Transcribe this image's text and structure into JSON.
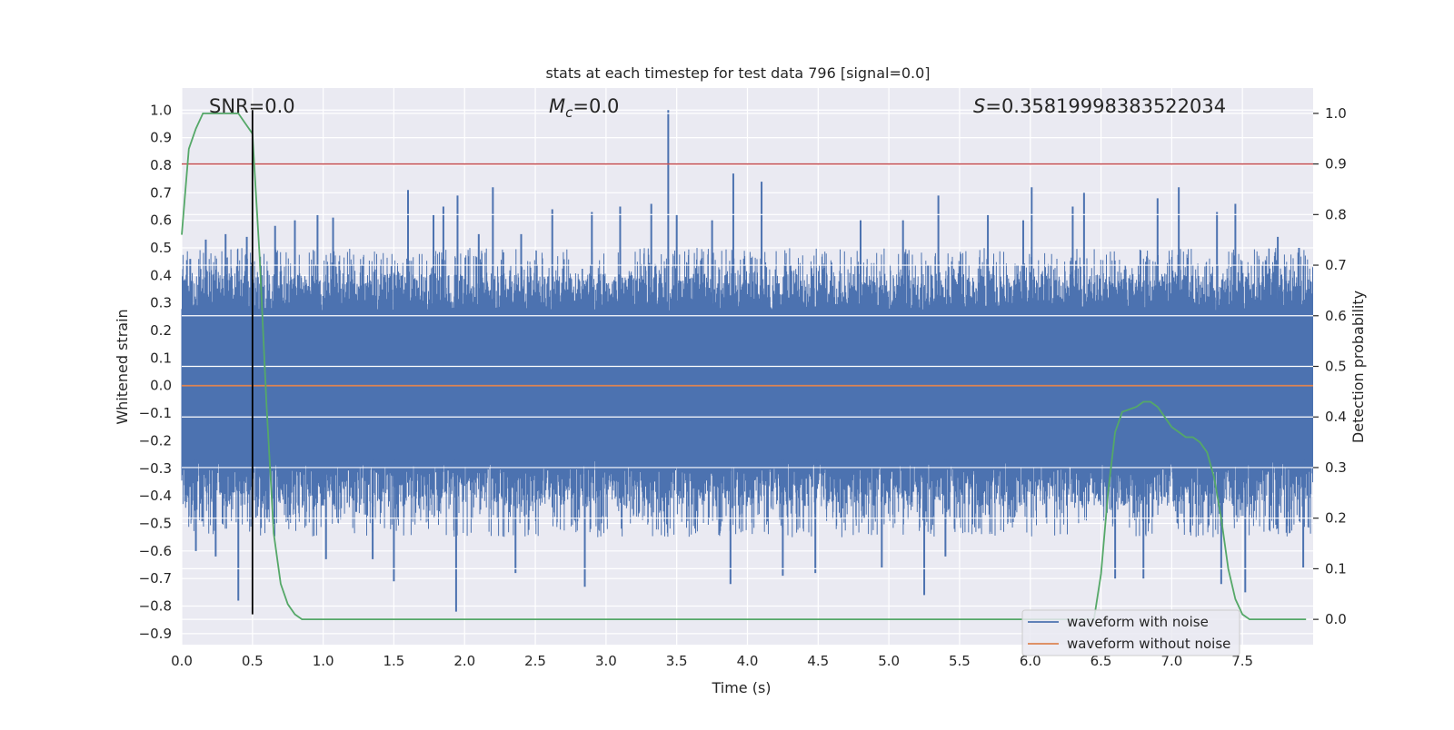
{
  "chart_data": {
    "type": "line",
    "title": "stats at each timestep for test data 796 [signal=0.0]",
    "xlabel": "Time (s)",
    "ylabel": "Whitened strain",
    "ylabel_right": "Detection probability",
    "xlim": [
      0.0,
      8.0
    ],
    "ylim": [
      -0.94,
      1.08
    ],
    "ylim_right": [
      -0.05,
      1.05
    ],
    "x_ticks": [
      0.0,
      0.5,
      1.0,
      1.5,
      2.0,
      2.5,
      3.0,
      3.5,
      4.0,
      4.5,
      5.0,
      5.5,
      6.0,
      6.5,
      7.0,
      7.5
    ],
    "x_tick_labels": [
      "0.0",
      "0.5",
      "1.0",
      "1.5",
      "2.0",
      "2.5",
      "3.0",
      "3.5",
      "4.0",
      "4.5",
      "5.0",
      "5.5",
      "6.0",
      "6.5",
      "7.0",
      "7.5"
    ],
    "y_ticks": [
      1.0,
      0.9,
      0.8,
      0.7,
      0.6,
      0.5,
      0.4,
      0.3,
      0.2,
      0.1,
      0.0,
      -0.1,
      -0.2,
      -0.3,
      -0.4,
      -0.5,
      -0.6,
      -0.7,
      -0.8,
      -0.9
    ],
    "y_tick_labels": [
      "1.0",
      "0.9",
      "0.8",
      "0.7",
      "0.6",
      "0.5",
      "0.4",
      "0.3",
      "0.2",
      "0.1",
      "0.0",
      "−0.1",
      "−0.2",
      "−0.3",
      "−0.4",
      "−0.5",
      "−0.6",
      "−0.7",
      "−0.8",
      "−0.9"
    ],
    "y_right_ticks": [
      1.0,
      0.9,
      0.8,
      0.7,
      0.6,
      0.5,
      0.4,
      0.3,
      0.2,
      0.1,
      0.0
    ],
    "y_right_tick_labels": [
      "1.0",
      "0.9",
      "0.8",
      "0.7",
      "0.6",
      "0.5",
      "0.4",
      "0.3",
      "0.2",
      "0.1",
      "0.0"
    ],
    "grid": true,
    "legend_position": "bottom-right",
    "colors": {
      "background": "#eaeaf2",
      "grid": "#ffffff",
      "noise": "#4c72b0",
      "clean": "#dd8452",
      "probability": "#55a868",
      "threshold": "#c44e52",
      "marker": "#000000"
    },
    "series": [
      {
        "name": "waveform with noise",
        "axis": "left",
        "sampled": true,
        "envelope": {
          "x": [
            0.0,
            0.5,
            1.0,
            1.5,
            2.0,
            2.5,
            3.0,
            3.5,
            4.0,
            4.5,
            5.0,
            5.5,
            6.0,
            6.5,
            7.0,
            7.5,
            8.0
          ],
          "typical_max": 0.5,
          "typical_min": -0.55,
          "core_abs": 0.27
        },
        "spikes": [
          {
            "x": 0.06,
            "y": 0.46
          },
          {
            "x": 0.1,
            "y": -0.6
          },
          {
            "x": 0.17,
            "y": 0.53
          },
          {
            "x": 0.24,
            "y": -0.62
          },
          {
            "x": 0.31,
            "y": 0.55
          },
          {
            "x": 0.4,
            "y": -0.78
          },
          {
            "x": 0.46,
            "y": 0.54
          },
          {
            "x": 0.6,
            "y": -0.45
          },
          {
            "x": 0.66,
            "y": 0.58
          },
          {
            "x": 0.8,
            "y": 0.6
          },
          {
            "x": 0.96,
            "y": 0.62
          },
          {
            "x": 1.02,
            "y": -0.63
          },
          {
            "x": 1.07,
            "y": 0.61
          },
          {
            "x": 1.35,
            "y": -0.63
          },
          {
            "x": 1.5,
            "y": -0.71
          },
          {
            "x": 1.6,
            "y": 0.71
          },
          {
            "x": 1.78,
            "y": 0.62
          },
          {
            "x": 1.85,
            "y": 0.65
          },
          {
            "x": 1.94,
            "y": -0.82
          },
          {
            "x": 1.95,
            "y": 0.69
          },
          {
            "x": 2.1,
            "y": 0.55
          },
          {
            "x": 2.2,
            "y": 0.72
          },
          {
            "x": 2.36,
            "y": -0.68
          },
          {
            "x": 2.4,
            "y": 0.55
          },
          {
            "x": 2.62,
            "y": 0.64
          },
          {
            "x": 2.85,
            "y": -0.73
          },
          {
            "x": 2.9,
            "y": 0.63
          },
          {
            "x": 3.1,
            "y": 0.65
          },
          {
            "x": 3.32,
            "y": 0.66
          },
          {
            "x": 3.44,
            "y": 1.0
          },
          {
            "x": 3.5,
            "y": 0.62
          },
          {
            "x": 3.75,
            "y": 0.6
          },
          {
            "x": 3.88,
            "y": -0.72
          },
          {
            "x": 3.9,
            "y": 0.77
          },
          {
            "x": 4.1,
            "y": 0.74
          },
          {
            "x": 4.25,
            "y": -0.69
          },
          {
            "x": 4.48,
            "y": -0.68
          },
          {
            "x": 4.8,
            "y": 0.6
          },
          {
            "x": 4.95,
            "y": -0.66
          },
          {
            "x": 5.1,
            "y": 0.6
          },
          {
            "x": 5.25,
            "y": -0.76
          },
          {
            "x": 5.35,
            "y": 0.69
          },
          {
            "x": 5.4,
            "y": -0.62
          },
          {
            "x": 5.7,
            "y": 0.62
          },
          {
            "x": 5.95,
            "y": 0.6
          },
          {
            "x": 6.01,
            "y": 0.72
          },
          {
            "x": 6.3,
            "y": 0.65
          },
          {
            "x": 6.38,
            "y": 0.7
          },
          {
            "x": 6.6,
            "y": -0.7
          },
          {
            "x": 6.8,
            "y": -0.7
          },
          {
            "x": 6.9,
            "y": 0.68
          },
          {
            "x": 7.05,
            "y": 0.72
          },
          {
            "x": 7.32,
            "y": 0.63
          },
          {
            "x": 7.35,
            "y": -0.72
          },
          {
            "x": 7.45,
            "y": 0.66
          },
          {
            "x": 7.52,
            "y": -0.75
          },
          {
            "x": 7.75,
            "y": 0.54
          },
          {
            "x": 7.9,
            "y": 0.5
          },
          {
            "x": 7.93,
            "y": -0.66
          }
        ]
      },
      {
        "name": "waveform without noise",
        "axis": "left",
        "x": [
          0.0,
          8.0
        ],
        "y": [
          0.0,
          0.0
        ]
      },
      {
        "axis": "right",
        "x": [
          0.0,
          0.05,
          0.1,
          0.15,
          0.2,
          0.3,
          0.4,
          0.45,
          0.5,
          0.55,
          0.6,
          0.65,
          0.7,
          0.75,
          0.8,
          0.85,
          0.9,
          1.0,
          2.0,
          3.0,
          4.0,
          5.0,
          6.0,
          6.3,
          6.45,
          6.5,
          6.55,
          6.6,
          6.65,
          6.7,
          6.75,
          6.8,
          6.85,
          6.9,
          6.95,
          7.0,
          7.05,
          7.1,
          7.15,
          7.2,
          7.25,
          7.3,
          7.35,
          7.4,
          7.45,
          7.5,
          7.55,
          7.6,
          7.65,
          7.7,
          7.75,
          7.8,
          7.85,
          7.9,
          7.95
        ],
        "y": [
          0.76,
          0.93,
          0.97,
          1.0,
          1.0,
          1.0,
          1.0,
          0.98,
          0.96,
          0.72,
          0.42,
          0.17,
          0.07,
          0.03,
          0.01,
          0.0,
          0.0,
          0.0,
          0.0,
          0.0,
          0.0,
          0.0,
          0.0,
          0.0,
          0.0,
          0.09,
          0.25,
          0.37,
          0.41,
          0.415,
          0.42,
          0.43,
          0.43,
          0.42,
          0.4,
          0.38,
          0.37,
          0.36,
          0.36,
          0.35,
          0.33,
          0.28,
          0.2,
          0.1,
          0.04,
          0.01,
          0.0,
          0.0,
          0.0,
          0.0,
          0.0,
          0.0,
          0.0,
          0.0,
          0.0
        ]
      }
    ],
    "threshold": {
      "axis": "right",
      "y": 0.9
    },
    "marker_line": {
      "x": 0.5,
      "y_range": [
        -0.83,
        1.0
      ]
    },
    "annotations": {
      "snr": "SNR=0.0",
      "mc_symbol": "M",
      "mc_sub": "c",
      "mc_value": "=0.0",
      "s_symbol": "S",
      "s_value": "=0.35819998383522034"
    },
    "legend": [
      {
        "label": "waveform with noise",
        "color": "#4c72b0"
      },
      {
        "label": "waveform without noise",
        "color": "#dd8452"
      }
    ]
  }
}
